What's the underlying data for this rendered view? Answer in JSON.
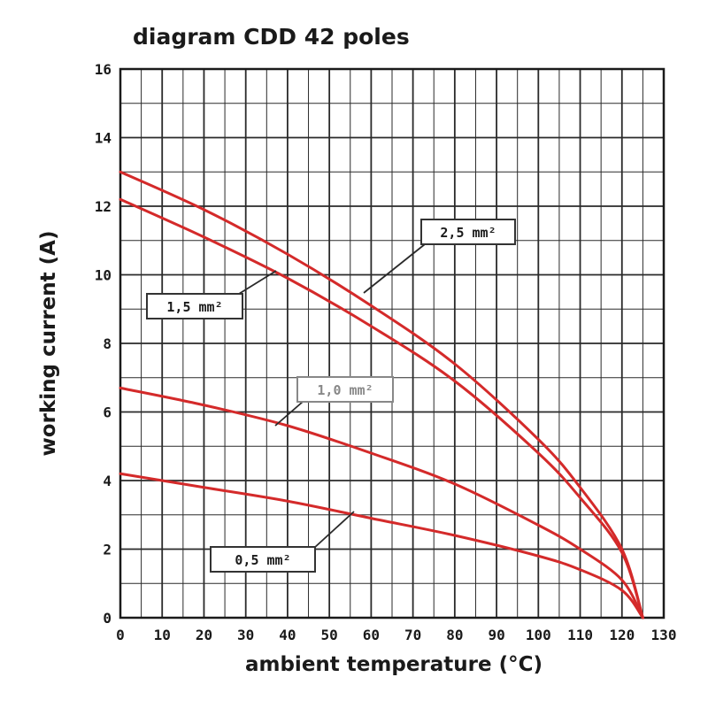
{
  "chart_data": {
    "type": "line",
    "title": "diagram CDD 42 poles",
    "xlabel": "ambient temperature (°C)",
    "ylabel": "working current (A)",
    "xlim": [
      0,
      130
    ],
    "ylim": [
      0,
      16
    ],
    "x_ticks": [
      0,
      10,
      20,
      30,
      40,
      50,
      60,
      70,
      80,
      90,
      100,
      110,
      120,
      130
    ],
    "y_ticks": [
      0,
      2,
      4,
      6,
      8,
      10,
      12,
      14,
      16
    ],
    "x_tick_labels": [
      "0",
      "10",
      "20",
      "30",
      "40",
      "50",
      "60",
      "70",
      "80",
      "90",
      "100",
      "110",
      "120",
      "130"
    ],
    "y_tick_labels": [
      "0",
      "2",
      "4",
      "6",
      "8",
      "10",
      "12",
      "14",
      "16"
    ],
    "grid": true,
    "line_color": "#d42a2a",
    "series": [
      {
        "name": "2,5 mm²",
        "x": [
          0,
          20,
          40,
          60,
          80,
          100,
          110,
          120,
          125
        ],
        "y": [
          13.0,
          11.9,
          10.6,
          9.1,
          7.4,
          5.2,
          3.8,
          2.0,
          0
        ]
      },
      {
        "name": "1,5 mm²",
        "x": [
          0,
          20,
          40,
          60,
          80,
          100,
          110,
          120,
          125
        ],
        "y": [
          12.2,
          11.1,
          9.9,
          8.5,
          6.9,
          4.8,
          3.5,
          1.9,
          0
        ]
      },
      {
        "name": "1,0 mm²",
        "x": [
          0,
          20,
          40,
          60,
          80,
          100,
          110,
          120,
          125
        ],
        "y": [
          6.7,
          6.2,
          5.6,
          4.8,
          3.9,
          2.7,
          2.0,
          1.1,
          0
        ]
      },
      {
        "name": "0,5 mm²",
        "x": [
          0,
          20,
          40,
          60,
          80,
          100,
          110,
          120,
          125
        ],
        "y": [
          4.2,
          3.8,
          3.4,
          2.9,
          2.4,
          1.8,
          1.4,
          0.8,
          0
        ]
      }
    ],
    "annotations": [
      {
        "text": "2,5 mm²",
        "series": "2,5 mm²"
      },
      {
        "text": "1,5 mm²",
        "series": "1,5 mm²"
      },
      {
        "text": "1,0 mm²",
        "series": "1,0 mm²"
      },
      {
        "text": "0,5 mm²",
        "series": "0,5 mm²"
      }
    ]
  }
}
